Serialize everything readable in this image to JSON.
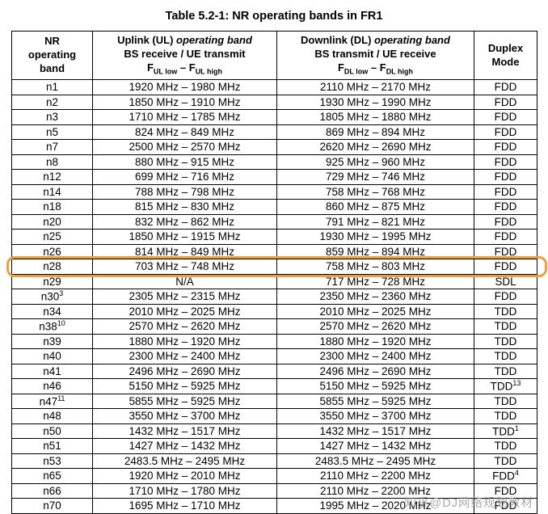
{
  "page": {
    "title": "Table 5.2-1: NR operating bands in FR1",
    "watermark": "知乎@DJ网络规划教材"
  },
  "colors": {
    "highlight": "#E8A13C",
    "watermark": "#9C9C9C",
    "border": "#000000"
  },
  "table": {
    "headers": {
      "band": {
        "line1": "NR",
        "line2": "operating",
        "line3": "band"
      },
      "uplink": {
        "line1_prefix": "Uplink (UL) ",
        "line1_italic": "operating band",
        "line2": "BS receive / UE transmit",
        "f": "F",
        "sub_low": "UL low",
        "dash": " – ",
        "sub_high": "UL high"
      },
      "downlink": {
        "line1_prefix": "Downlink (DL) ",
        "line1_italic": "operating band",
        "line2": "BS transmit / UE receive",
        "f": "F",
        "sub_low": "DL low",
        "dash": " – ",
        "sub_high": "DL high"
      },
      "duplex": {
        "line1": "Duplex",
        "line2": "Mode"
      }
    },
    "rows": [
      {
        "band": "n1",
        "ul": "1920 MHz – 1980 MHz",
        "dl": "2110 MHz – 2170 MHz",
        "duplex": "FDD"
      },
      {
        "band": "n2",
        "ul": "1850 MHz – 1910 MHz",
        "dl": "1930 MHz – 1990 MHz",
        "duplex": "FDD"
      },
      {
        "band": "n3",
        "ul": "1710 MHz – 1785 MHz",
        "dl": "1805 MHz – 1880 MHz",
        "duplex": "FDD"
      },
      {
        "band": "n5",
        "ul": "824 MHz – 849 MHz",
        "dl": "869 MHz – 894 MHz",
        "duplex": "FDD"
      },
      {
        "band": "n7",
        "ul": "2500 MHz – 2570 MHz",
        "dl": "2620 MHz – 2690 MHz",
        "duplex": "FDD"
      },
      {
        "band": "n8",
        "ul": "880 MHz – 915 MHz",
        "dl": "925 MHz – 960 MHz",
        "duplex": "FDD"
      },
      {
        "band": "n12",
        "ul": "699 MHz – 716 MHz",
        "dl": "729 MHz – 746 MHz",
        "duplex": "FDD"
      },
      {
        "band": "n14",
        "ul": "788 MHz – 798 MHz",
        "dl": "758 MHz – 768 MHz",
        "duplex": "FDD"
      },
      {
        "band": "n18",
        "ul": "815 MHz – 830 MHz",
        "dl": "860 MHz – 875 MHz",
        "duplex": "FDD"
      },
      {
        "band": "n20",
        "ul": "832 MHz – 862 MHz",
        "dl": "791 MHz – 821 MHz",
        "duplex": "FDD"
      },
      {
        "band": "n25",
        "ul": "1850 MHz – 1915 MHz",
        "dl": "1930 MHz – 1995 MHz",
        "duplex": "FDD"
      },
      {
        "band": "n26",
        "ul": "814 MHz – 849 MHz",
        "dl": "859 MHz – 894 MHz",
        "duplex": "FDD"
      },
      {
        "band": "n28",
        "ul": "703 MHz – 748 MHz",
        "dl": "758 MHz – 803 MHz",
        "duplex": "FDD",
        "highlight": true
      },
      {
        "band": "n29",
        "ul": "N/A",
        "dl": "717 MHz – 728 MHz",
        "duplex": "SDL"
      },
      {
        "band": "n30",
        "band_sup": "3",
        "ul": "2305 MHz – 2315 MHz",
        "dl": "2350 MHz – 2360 MHz",
        "duplex": "FDD"
      },
      {
        "band": "n34",
        "ul": "2010 MHz – 2025 MHz",
        "dl": "2010 MHz – 2025 MHz",
        "duplex": "TDD"
      },
      {
        "band": "n38",
        "band_sup": "10",
        "ul": "2570 MHz – 2620 MHz",
        "dl": "2570 MHz – 2620 MHz",
        "duplex": "TDD"
      },
      {
        "band": "n39",
        "ul": "1880 MHz – 1920 MHz",
        "dl": "1880 MHz – 1920 MHz",
        "duplex": "TDD"
      },
      {
        "band": "n40",
        "ul": "2300 MHz – 2400 MHz",
        "dl": "2300 MHz – 2400 MHz",
        "duplex": "TDD"
      },
      {
        "band": "n41",
        "ul": "2496 MHz – 2690 MHz",
        "dl": "2496 MHz – 2690 MHz",
        "duplex": "TDD"
      },
      {
        "band": "n46",
        "ul": "5150 MHz – 5925 MHz",
        "dl": "5150 MHz – 5925 MHz",
        "duplex": "TDD",
        "duplex_sup": "13"
      },
      {
        "band": "n47",
        "band_sup": "11",
        "ul": "5855 MHz – 5925 MHz",
        "dl": "5855 MHz – 5925 MHz",
        "duplex": "TDD"
      },
      {
        "band": "n48",
        "ul": "3550 MHz – 3700 MHz",
        "dl": "3550 MHz – 3700 MHz",
        "duplex": "TDD"
      },
      {
        "band": "n50",
        "ul": "1432 MHz – 1517 MHz",
        "dl": "1432 MHz – 1517 MHz",
        "duplex": "TDD",
        "duplex_sup": "1"
      },
      {
        "band": "n51",
        "ul": "1427 MHz – 1432 MHz",
        "dl": "1427 MHz – 1432 MHz",
        "duplex": "TDD"
      },
      {
        "band": "n53",
        "ul": "2483.5 MHz – 2495 MHz",
        "dl": "2483.5 MHz – 2495 MHz",
        "duplex": "TDD"
      },
      {
        "band": "n65",
        "ul": "1920 MHz – 2010 MHz",
        "dl": "2110 MHz – 2200 MHz",
        "duplex": "FDD",
        "duplex_sup": "4"
      },
      {
        "band": "n66",
        "ul": "1710 MHz – 1780 MHz",
        "dl": "2110 MHz – 2200 MHz",
        "duplex": "FDD"
      },
      {
        "band": "n70",
        "ul": "1695 MHz – 1710 MHz",
        "dl": "1995 MHz – 2020 MHz",
        "duplex": "FDD"
      }
    ]
  }
}
